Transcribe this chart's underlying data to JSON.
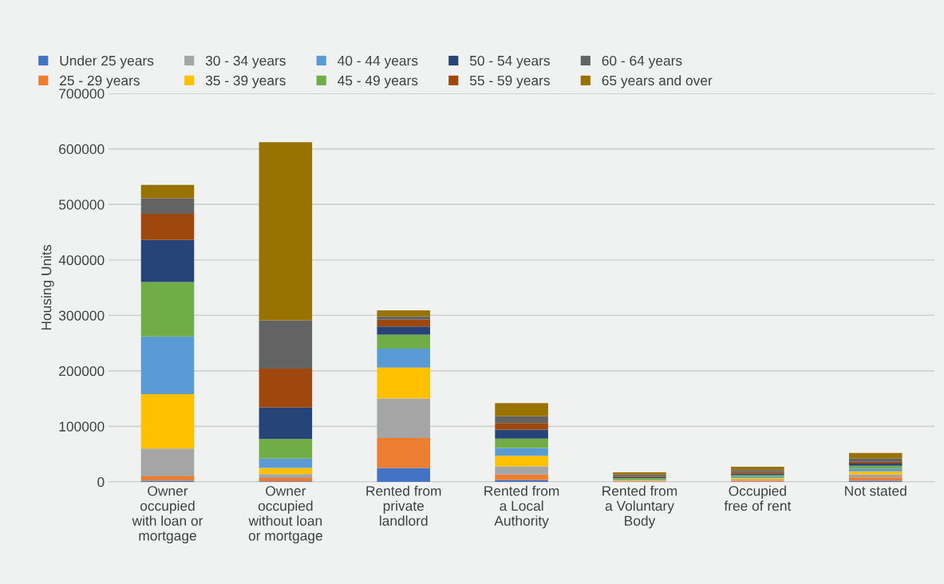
{
  "chart_data": {
    "type": "bar",
    "stacked": true,
    "ylabel": "Housing Units",
    "categories": [
      "Owner\noccupied\nwith loan or\nmortgage",
      "Owner\noccupied\nwithout loan\nor mortgage",
      "Rented from\nprivate\nlandlord",
      "Rented from\na Local\nAuthority",
      "Rented from\na Voluntary\nBody",
      "Occupied\nfree of rent",
      "Not stated"
    ],
    "series": [
      {
        "name": "Under 25 years",
        "color": "#4472c4",
        "values": [
          2000,
          1000,
          25000,
          3000,
          null,
          null,
          2000
        ]
      },
      {
        "name": "25 - 29 years",
        "color": "#ed7d31",
        "values": [
          8000,
          6000,
          54000,
          10000,
          1000,
          2000,
          6000
        ]
      },
      {
        "name": "30 - 34 years",
        "color": "#a5a5a5",
        "values": [
          50000,
          7000,
          71000,
          15000,
          1000,
          3000,
          5000
        ]
      },
      {
        "name": "35 - 39 years",
        "color": "#ffc000",
        "values": [
          98000,
          11000,
          56000,
          19000,
          1000,
          2000,
          6000
        ]
      },
      {
        "name": "40 - 44 years",
        "color": "#5b9bd5",
        "values": [
          104000,
          17000,
          34000,
          14000,
          1000,
          2000,
          5000
        ]
      },
      {
        "name": "45 - 49 years",
        "color": "#70ad47",
        "values": [
          98000,
          35000,
          25000,
          17000,
          3000,
          3000,
          5000
        ]
      },
      {
        "name": "50 - 54 years",
        "color": "#264478",
        "values": [
          76000,
          57000,
          15000,
          16000,
          2000,
          3000,
          4000
        ]
      },
      {
        "name": "55 - 59 years",
        "color": "#9e480e",
        "values": [
          47000,
          70000,
          12000,
          12000,
          2000,
          3000,
          3000
        ]
      },
      {
        "name": "60 - 64 years",
        "color": "#636363",
        "values": [
          28000,
          87000,
          6000,
          12000,
          2000,
          3000,
          6000
        ]
      },
      {
        "name": "65 years and over",
        "color": "#997300",
        "values": [
          24000,
          321000,
          11000,
          24000,
          4000,
          6000,
          10000
        ]
      }
    ],
    "ylim": [
      0,
      700000
    ],
    "yticks": [
      0,
      100000,
      200000,
      300000,
      400000,
      500000,
      600000,
      700000
    ],
    "grid": "y",
    "legend": "top"
  }
}
